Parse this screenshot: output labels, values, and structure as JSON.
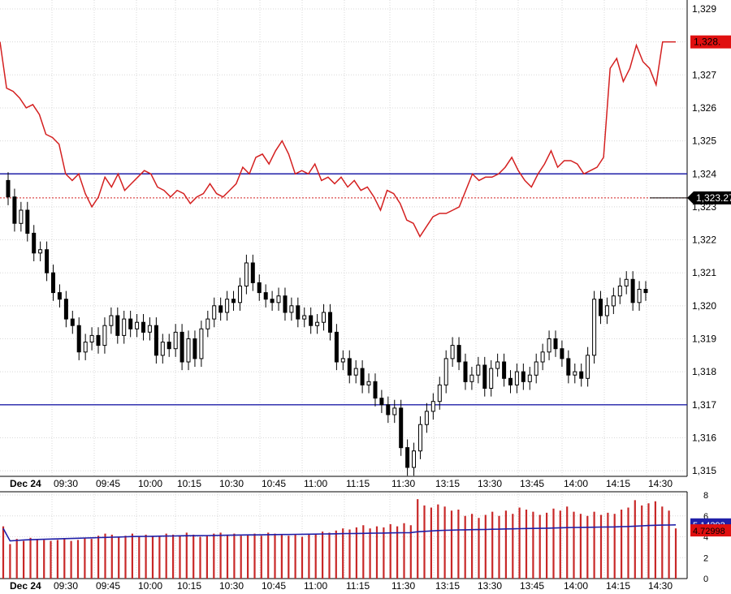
{
  "colors": {
    "background": "#ffffff",
    "grid": "#d8d8d8",
    "red_line": "#d42020",
    "blue_line": "#1f1fa8",
    "candle": "#000000",
    "volume_bar": "#c82828",
    "volume_avg": "#1f1fa8",
    "last_price_tag": "#000000",
    "red_tag": "#e01010",
    "blue_tag": "#1f1fa8"
  },
  "chart_data": [
    {
      "type": "candlestick",
      "date_label": "Dec 24",
      "x_ticks": [
        "09:30",
        "09:45",
        "10:00",
        "10:15",
        "10:30",
        "10:45",
        "11:00",
        "11:15",
        "11:30",
        "13:15",
        "13:30",
        "13:45",
        "14:00",
        "14:15",
        "14:30"
      ],
      "y_ticks": [
        "1,315",
        "1,316",
        "1,317",
        "1,318",
        "1,319",
        "1,320",
        "1,321",
        "1,322",
        "1,323",
        "1,324",
        "1,325",
        "1,326",
        "1,327",
        "1,328",
        "1,329"
      ],
      "ylim": [
        1314.7,
        1329.2
      ],
      "grid": true,
      "horizontal_lines": [
        1324.0,
        1317.0
      ],
      "reference_dotted_line": 1323.27,
      "price_tags": {
        "red": "1,328.",
        "last": "1,323.27"
      },
      "series": [
        {
          "kind": "line",
          "values": [
            1328.0,
            1326.6,
            1326.5,
            1326.3,
            1326.0,
            1326.1,
            1325.8,
            1325.2,
            1325.1,
            1324.9,
            1324.0,
            1323.8,
            1324.0,
            1323.4,
            1323.0,
            1323.3,
            1323.9,
            1323.6,
            1324.0,
            1323.5,
            1323.7,
            1323.9,
            1324.1,
            1324.0,
            1323.6,
            1323.5,
            1323.3,
            1323.5,
            1323.4,
            1323.1,
            1323.3,
            1323.4,
            1323.7,
            1323.4,
            1323.3,
            1323.5,
            1323.7,
            1324.2,
            1324.0,
            1324.5,
            1324.6,
            1324.3,
            1324.7,
            1325.0,
            1324.6,
            1324.0,
            1324.1,
            1324.0,
            1324.3,
            1323.8,
            1323.9,
            1323.7,
            1323.9,
            1323.6,
            1323.8,
            1323.5,
            1323.6,
            1323.3,
            1322.9,
            1323.5,
            1323.4,
            1323.1,
            1322.6,
            1322.5,
            1322.1,
            1322.4,
            1322.7,
            1322.8,
            1322.8,
            1322.9,
            1323.0,
            1323.5,
            1324.0,
            1323.8,
            1323.9,
            1323.9,
            1324.0,
            1324.2,
            1324.5,
            1324.1,
            1323.8,
            1323.6,
            1324.0,
            1324.3,
            1324.7,
            1324.2,
            1324.4,
            1324.4,
            1324.3,
            1324.0,
            1324.1,
            1324.2,
            1324.5,
            1327.2,
            1327.5,
            1326.8,
            1327.2,
            1327.9,
            1327.4,
            1327.2,
            1326.7,
            1328.0,
            1328.0,
            1328.0
          ],
          "color": "red"
        },
        {
          "kind": "candles",
          "close": [
            1323.3,
            1322.5,
            1322.9,
            1322.2,
            1321.6,
            1321.7,
            1321.0,
            1320.4,
            1320.2,
            1319.6,
            1319.4,
            1318.6,
            1318.9,
            1319.1,
            1318.8,
            1319.4,
            1319.7,
            1319.1,
            1319.6,
            1319.3,
            1319.5,
            1319.2,
            1319.4,
            1318.5,
            1318.9,
            1318.7,
            1319.2,
            1318.3,
            1319.0,
            1318.4,
            1319.3,
            1319.6,
            1320.0,
            1319.8,
            1320.2,
            1320.1,
            1320.6,
            1321.3,
            1320.7,
            1320.4,
            1320.2,
            1320.1,
            1320.3,
            1319.8,
            1320.0,
            1319.6,
            1319.7,
            1319.4,
            1319.5,
            1319.8,
            1319.2,
            1318.3,
            1318.4,
            1317.9,
            1318.1,
            1317.6,
            1317.7,
            1317.2,
            1317.0,
            1316.7,
            1316.9,
            1315.7,
            1315.1,
            1315.6,
            1316.4,
            1316.8,
            1317.1,
            1317.6,
            1318.4,
            1318.8,
            1318.3,
            1317.7,
            1317.9,
            1318.2,
            1317.5,
            1318.1,
            1318.3,
            1317.8,
            1317.6,
            1318.0,
            1317.7,
            1317.9,
            1318.3,
            1318.6,
            1319.0,
            1318.7,
            1318.4,
            1317.9,
            1318.0,
            1317.8,
            1318.5,
            1320.2,
            1319.7,
            1320.0,
            1320.3,
            1320.6,
            1320.8,
            1320.1,
            1320.5,
            1320.4
          ],
          "color": "black"
        }
      ]
    },
    {
      "type": "bar",
      "y_ticks": [
        "0",
        "2",
        "4",
        "6",
        "8"
      ],
      "ylim": [
        0,
        8.4
      ],
      "value_tags": [
        "5.14292",
        "4.72998"
      ],
      "bars": [
        5.0,
        3.3,
        3.8,
        3.6,
        3.9,
        3.8,
        3.7,
        3.6,
        3.7,
        3.8,
        3.6,
        3.7,
        3.9,
        3.8,
        4.1,
        4.3,
        4.2,
        4.0,
        4.1,
        4.3,
        4.0,
        4.2,
        4.1,
        4.0,
        4.3,
        4.2,
        4.1,
        4.4,
        4.2,
        4.0,
        4.1,
        4.3,
        4.4,
        4.2,
        4.3,
        4.1,
        4.2,
        4.3,
        4.1,
        4.4,
        4.3,
        4.2,
        4.1,
        4.2,
        4.0,
        4.2,
        4.3,
        4.5,
        4.4,
        4.6,
        4.8,
        4.7,
        4.9,
        5.1,
        4.8,
        5.0,
        4.9,
        5.2,
        5.0,
        5.3,
        5.1,
        7.6,
        7.0,
        6.8,
        7.1,
        6.9,
        6.5,
        6.6,
        6.0,
        6.2,
        5.8,
        6.1,
        6.4,
        6.0,
        6.5,
        6.2,
        6.8,
        6.6,
        6.4,
        6.1,
        6.3,
        6.7,
        6.5,
        6.9,
        6.4,
        6.2,
        6.0,
        6.4,
        6.1,
        6.3,
        6.2,
        6.6,
        6.8,
        7.5,
        7.0,
        7.2,
        7.4,
        6.9,
        6.5,
        4.8
      ],
      "average": [
        4.8,
        3.6,
        3.65,
        3.7,
        3.72,
        3.74,
        3.76,
        3.78,
        3.8,
        3.82,
        3.84,
        3.86,
        3.88,
        3.9,
        3.92,
        3.94,
        3.96,
        3.98,
        4.0,
        4.02,
        4.03,
        4.04,
        4.05,
        4.06,
        4.07,
        4.08,
        4.09,
        4.1,
        4.1,
        4.11,
        4.12,
        4.13,
        4.14,
        4.15,
        4.16,
        4.17,
        4.18,
        4.18,
        4.19,
        4.2,
        4.21,
        4.22,
        4.22,
        4.23,
        4.24,
        4.25,
        4.26,
        4.27,
        4.28,
        4.29,
        4.3,
        4.31,
        4.32,
        4.33,
        4.34,
        4.35,
        4.36,
        4.37,
        4.38,
        4.39,
        4.4,
        4.48,
        4.52,
        4.56,
        4.6,
        4.62,
        4.64,
        4.66,
        4.67,
        4.68,
        4.69,
        4.7,
        4.72,
        4.73,
        4.75,
        4.76,
        4.78,
        4.79,
        4.8,
        4.81,
        4.82,
        4.84,
        4.86,
        4.88,
        4.89,
        4.9,
        4.91,
        4.92,
        4.93,
        4.94,
        4.95,
        4.97,
        4.99,
        5.02,
        5.05,
        5.08,
        5.1,
        5.12,
        5.13,
        5.14
      ]
    }
  ]
}
